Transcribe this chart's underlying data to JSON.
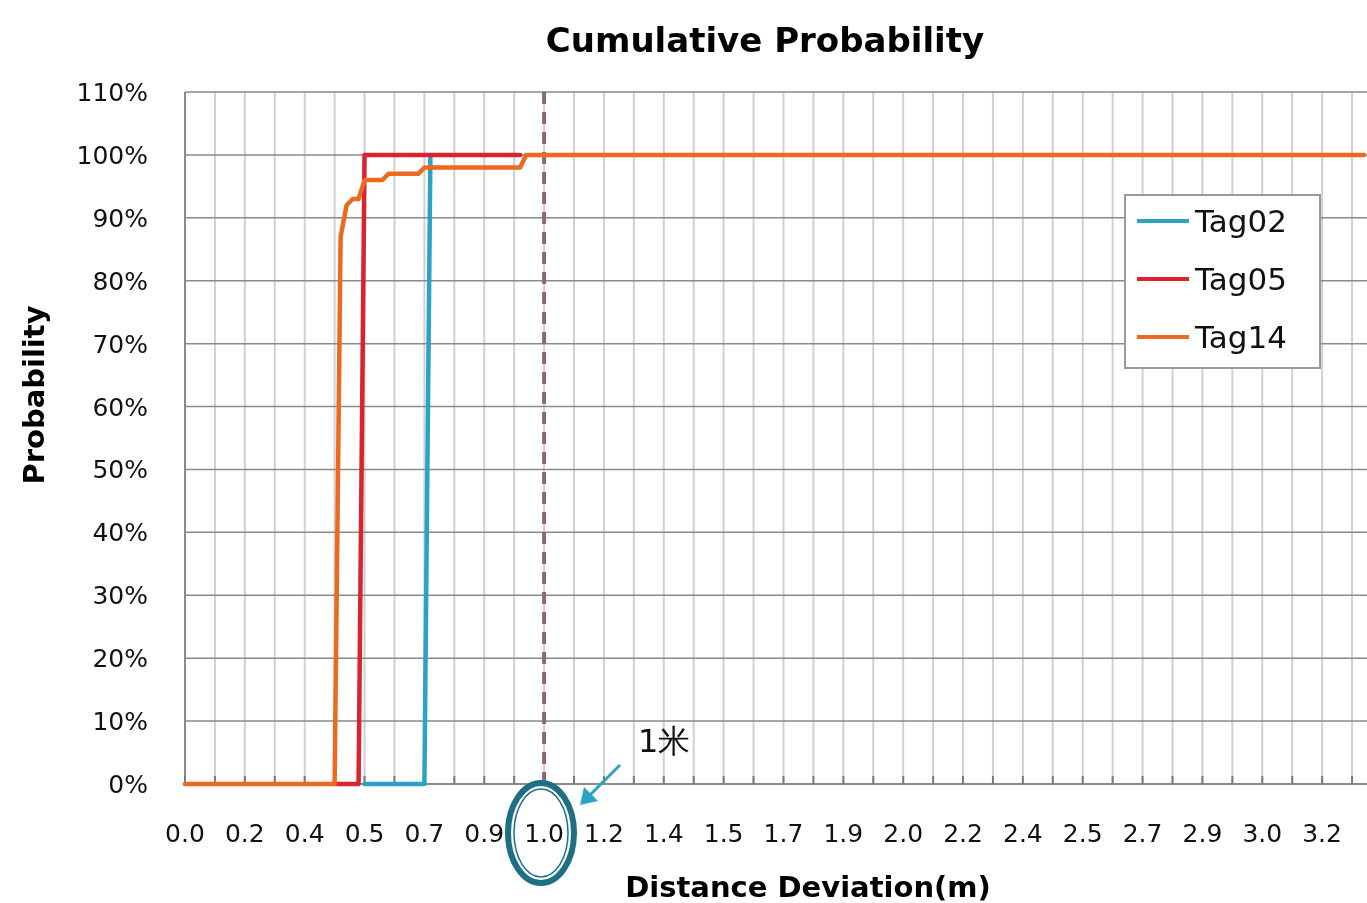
{
  "chart_data": {
    "type": "line",
    "title": "Cumulative Probability",
    "xlabel": "Distance Deviation(m)",
    "ylabel": "Probability",
    "categories": [
      "0.0",
      null,
      null,
      null,
      null,
      null,
      null,
      null,
      null,
      null,
      "0.2",
      null,
      null,
      null,
      null,
      null,
      null,
      null,
      null,
      null,
      "0.4",
      null,
      null,
      null,
      null,
      null,
      null,
      null,
      null,
      null,
      "0.5",
      null,
      null,
      null,
      null,
      null,
      null,
      null,
      null,
      null,
      "0.7",
      null,
      null,
      null,
      null,
      null,
      null,
      null,
      null,
      null,
      "0.9",
      null,
      null,
      null,
      null,
      null,
      null,
      null,
      null,
      null,
      "1.0",
      null,
      null,
      null,
      null,
      null,
      null,
      null,
      null,
      null,
      "1.2",
      null,
      null,
      null,
      null,
      null,
      null,
      null,
      null,
      null,
      "1.4",
      null,
      null,
      null,
      null,
      null,
      null,
      null,
      null,
      null,
      "1.5",
      null,
      null,
      null,
      null,
      null,
      null,
      null,
      null,
      null,
      "1.7",
      null,
      null,
      null,
      null,
      null,
      null,
      null,
      null,
      null,
      "1.9",
      null,
      null,
      null,
      null,
      null,
      null,
      null,
      null,
      null,
      "2.0",
      null,
      null,
      null,
      null,
      null,
      null,
      null,
      null,
      null,
      "2.2",
      null,
      null,
      null,
      null,
      null,
      null,
      null,
      null,
      null,
      "2.4",
      null,
      null,
      null,
      null,
      null,
      null,
      null,
      null,
      null,
      "2.5",
      null,
      null,
      null,
      null,
      null,
      null,
      null,
      null,
      null,
      "2.7",
      null,
      null,
      null,
      null,
      null,
      null,
      null,
      null,
      null,
      "2.9",
      null,
      null,
      null,
      null,
      null,
      null,
      null,
      null,
      null,
      "3.0",
      null,
      null,
      null,
      null,
      null,
      null,
      null,
      null,
      null,
      "3.2",
      null,
      null,
      null,
      null,
      null,
      null,
      null
    ],
    "series": [
      {
        "name": "Tag02",
        "color": "#2ba3c4",
        "values": [
          null,
          null,
          null,
          null,
          null,
          null,
          null,
          null,
          null,
          null,
          null,
          null,
          null,
          null,
          null,
          null,
          null,
          null,
          null,
          null,
          null,
          null,
          null,
          null,
          null,
          null,
          null,
          null,
          null,
          null,
          0,
          0,
          0,
          0,
          0,
          0,
          0,
          0,
          0,
          0,
          0,
          100,
          null,
          null,
          null,
          null,
          null,
          null,
          null,
          null,
          null,
          null,
          null,
          null,
          null,
          null,
          null,
          null,
          null,
          null,
          null,
          null,
          null,
          null,
          null,
          null,
          null,
          null,
          null,
          null,
          null,
          null,
          null,
          null,
          null,
          null,
          null,
          null,
          null,
          null,
          null,
          null,
          null,
          null,
          null,
          null,
          null,
          null,
          null,
          null,
          null,
          null,
          null,
          null,
          null,
          null,
          null,
          null,
          null,
          null,
          null,
          null,
          null,
          null,
          null,
          null,
          null,
          null,
          null,
          null,
          null,
          null,
          null,
          null,
          null,
          null,
          null,
          null,
          null,
          null,
          null,
          null,
          null,
          null,
          null,
          null,
          null,
          null,
          null,
          null,
          null,
          null,
          null,
          null,
          null,
          null,
          null,
          null,
          null,
          null,
          null,
          null,
          null,
          null,
          null,
          null,
          null,
          null,
          null,
          null,
          null,
          null,
          null,
          null,
          null,
          null,
          null,
          null,
          null,
          null,
          null,
          null,
          null,
          null,
          null,
          null,
          null,
          null,
          null,
          null,
          null,
          null,
          null,
          null,
          null,
          null,
          null,
          null,
          null,
          null,
          null,
          null,
          null,
          null,
          null,
          null,
          null,
          null,
          null,
          null,
          null,
          null,
          null,
          null,
          null,
          null,
          null,
          null
        ]
      },
      {
        "name": "Tag05",
        "color": "#d9232e",
        "values": [
          null,
          null,
          null,
          null,
          null,
          null,
          null,
          null,
          null,
          null,
          null,
          null,
          null,
          null,
          null,
          null,
          null,
          null,
          null,
          null,
          null,
          null,
          null,
          null,
          null,
          0,
          0,
          0,
          0,
          0,
          100,
          100,
          100,
          100,
          100,
          100,
          100,
          100,
          100,
          100,
          100,
          100,
          100,
          100,
          100,
          100,
          100,
          100,
          100,
          100,
          100,
          100,
          100,
          100,
          100,
          100,
          100,
          null,
          null,
          null,
          null,
          null,
          null,
          null,
          null,
          null,
          null,
          null,
          null,
          null,
          null,
          null,
          null,
          null,
          null,
          null,
          null,
          null,
          null,
          null,
          null,
          null,
          null,
          null,
          null,
          null,
          null,
          null,
          null,
          null,
          null,
          null,
          null,
          null,
          null,
          null,
          null,
          null,
          null,
          null,
          null,
          null,
          null,
          null,
          null,
          null,
          null,
          null,
          null,
          null,
          null,
          null,
          null,
          null,
          null,
          null,
          null,
          null,
          null,
          null,
          null,
          null,
          null,
          null,
          null,
          null,
          null,
          null,
          null,
          null,
          null,
          null,
          null,
          null,
          null,
          null,
          null,
          null,
          null,
          null,
          null,
          null,
          null,
          null,
          null,
          null,
          null,
          null,
          null,
          null,
          null,
          null,
          null,
          null,
          null,
          null,
          null,
          null,
          null,
          null,
          null,
          null,
          null,
          null,
          null,
          null,
          null,
          null,
          null,
          null,
          null,
          null,
          null,
          null,
          null,
          null,
          null,
          null,
          null,
          null,
          null,
          null,
          null,
          null,
          null,
          null,
          null,
          null,
          null,
          null,
          null,
          null,
          null,
          null,
          null,
          null,
          null,
          null
        ]
      },
      {
        "name": "Tag14",
        "color": "#ec6a1f",
        "values": [
          0,
          0,
          0,
          0,
          0,
          0,
          0,
          0,
          0,
          0,
          0,
          0,
          0,
          0,
          0,
          0,
          0,
          0,
          0,
          0,
          0,
          0,
          0,
          0,
          0,
          0,
          87,
          92,
          93,
          93,
          96,
          96,
          96,
          96,
          97,
          97,
          97,
          97,
          97,
          97,
          98,
          98,
          98,
          98,
          98,
          98,
          98,
          98,
          98,
          98,
          98,
          98,
          98,
          98,
          98,
          98,
          98,
          100,
          100,
          100,
          100,
          100,
          100,
          100,
          100,
          100,
          100,
          100,
          100,
          100,
          100,
          100,
          100,
          100,
          100,
          100,
          100,
          100,
          100,
          100,
          100,
          100,
          100,
          100,
          100,
          100,
          100,
          100,
          100,
          100,
          100,
          100,
          100,
          100,
          100,
          100,
          100,
          100,
          100,
          100,
          100,
          100,
          100,
          100,
          100,
          100,
          100,
          100,
          100,
          100,
          100,
          100,
          100,
          100,
          100,
          100,
          100,
          100,
          100,
          100,
          100,
          100,
          100,
          100,
          100,
          100,
          100,
          100,
          100,
          100,
          100,
          100,
          100,
          100,
          100,
          100,
          100,
          100,
          100,
          100,
          100,
          100,
          100,
          100,
          100,
          100,
          100,
          100,
          100,
          100,
          100,
          100,
          100,
          100,
          100,
          100,
          100,
          100,
          100,
          100,
          100,
          100,
          100,
          100,
          100,
          100,
          100,
          100,
          100,
          100,
          100,
          100,
          100,
          100,
          100,
          100,
          100,
          100,
          100,
          100,
          100,
          100,
          100,
          100,
          100,
          100,
          100,
          100,
          100,
          100,
          100,
          100,
          100,
          100,
          100,
          100,
          100,
          100
        ]
      }
    ],
    "ylim": [
      0,
      110
    ],
    "yticks": [
      {
        "value": 0,
        "label": "0%"
      },
      {
        "value": 10,
        "label": "10%"
      },
      {
        "value": 20,
        "label": "20%"
      },
      {
        "value": 30,
        "label": "30%"
      },
      {
        "value": 40,
        "label": "40%"
      },
      {
        "value": 50,
        "label": "50%"
      },
      {
        "value": 60,
        "label": "60%"
      },
      {
        "value": 70,
        "label": "70%"
      },
      {
        "value": 80,
        "label": "80%"
      },
      {
        "value": 90,
        "label": "90%"
      },
      {
        "value": 100,
        "label": "100%"
      },
      {
        "value": 110,
        "label": "110%"
      }
    ],
    "ref_lines": [
      {
        "axis": "x",
        "value": "1.0",
        "color": "#8c6878",
        "line_style": "dashed"
      }
    ],
    "annotations": [
      "1米"
    ],
    "grid": true,
    "legend": "top right",
    "marker": "none",
    "line_style": "solid"
  }
}
